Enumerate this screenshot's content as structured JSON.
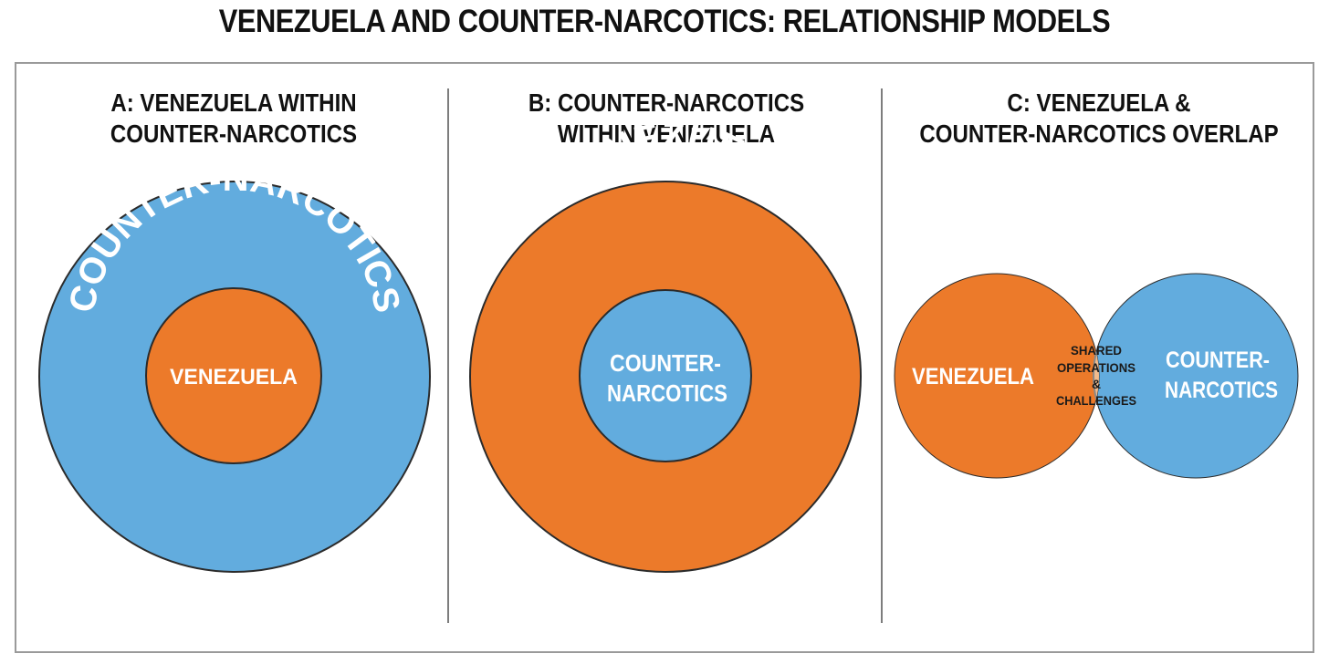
{
  "title": "VENEZUELA AND COUNTER-NARCOTICS: RELATIONSHIP MODELS",
  "colors": {
    "blue": "#62ACDE",
    "orange": "#EC7A2A",
    "overlap": "#F2BC8E",
    "outline": "#2B2B2B"
  },
  "panels": [
    {
      "title_line1": "A: VENEZUELA WITHIN",
      "title_line2": "COUNTER-NARCOTICS",
      "outer_label": "COUNTER-NARCOTICS",
      "inner_label": "VENEZUELA"
    },
    {
      "title_line1": "B: COUNTER-NARCOTICS",
      "title_line2": "WITHIN VENEZUELA",
      "outer_label": "VENEZUELA",
      "inner_label_line1": "COUNTER-",
      "inner_label_line2": "NARCOTICS"
    },
    {
      "title_line1": "C: VENEZUELA &",
      "title_line2": "COUNTER-NARCOTICS OVERLAP",
      "left_label": "VENEZUELA",
      "right_label_line1": "COUNTER-",
      "right_label_line2": "NARCOTICS",
      "overlap_line1": "SHARED",
      "overlap_line2": "OPERATIONS",
      "overlap_line3": "&",
      "overlap_line4": "CHALLENGES"
    }
  ]
}
